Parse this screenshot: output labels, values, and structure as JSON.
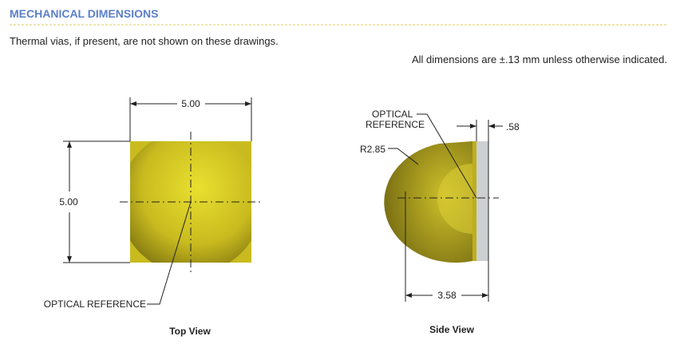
{
  "header": {
    "title": "MECHANICAL DIMENSIONS"
  },
  "notes": {
    "vias": "Thermal vias, if present, are not shown on these drawings.",
    "tolerance": "All dimensions are ±.13 mm unless otherwise indicated."
  },
  "top_view": {
    "width": "5.00",
    "height": "5.00",
    "reference": "OPTICAL REFERENCE",
    "caption": "Top View"
  },
  "side_view": {
    "reference_line1": "OPTICAL",
    "reference_line2": "REFERENCE",
    "radius": "R2.85",
    "thickness": ".58",
    "length": "3.58",
    "caption": "Side View"
  }
}
